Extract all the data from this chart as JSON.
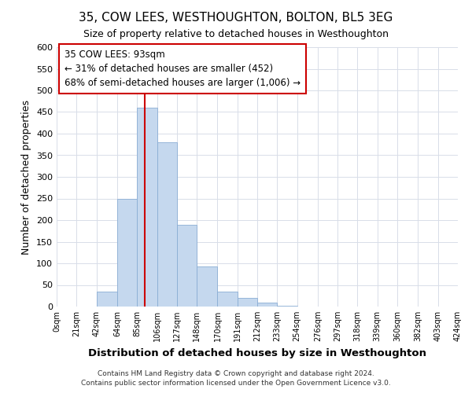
{
  "title": "35, COW LEES, WESTHOUGHTON, BOLTON, BL5 3EG",
  "subtitle": "Size of property relative to detached houses in Westhoughton",
  "xlabel": "Distribution of detached houses by size in Westhoughton",
  "ylabel": "Number of detached properties",
  "bar_color": "#c5d8ee",
  "bar_edge_color": "#8aadd4",
  "grid_color": "#d8dde8",
  "bin_edges": [
    0,
    21,
    42,
    64,
    85,
    106,
    127,
    148,
    170,
    191,
    212,
    233,
    254,
    276,
    297,
    318,
    339,
    360,
    382,
    403,
    424
  ],
  "bin_labels": [
    "0sqm",
    "21sqm",
    "42sqm",
    "64sqm",
    "85sqm",
    "106sqm",
    "127sqm",
    "148sqm",
    "170sqm",
    "191sqm",
    "212sqm",
    "233sqm",
    "254sqm",
    "276sqm",
    "297sqm",
    "318sqm",
    "339sqm",
    "360sqm",
    "382sqm",
    "403sqm",
    "424sqm"
  ],
  "counts": [
    0,
    0,
    35,
    250,
    460,
    380,
    190,
    92,
    35,
    20,
    10,
    2,
    0,
    0,
    0,
    0,
    0,
    0,
    0,
    0
  ],
  "ylim": [
    0,
    600
  ],
  "yticks": [
    0,
    50,
    100,
    150,
    200,
    250,
    300,
    350,
    400,
    450,
    500,
    550,
    600
  ],
  "vertical_line_x": 93,
  "annotation_title": "35 COW LEES: 93sqm",
  "annotation_line1": "← 31% of detached houses are smaller (452)",
  "annotation_line2": "68% of semi-detached houses are larger (1,006) →",
  "annotation_box_color": "#ffffff",
  "annotation_box_edge": "#cc0000",
  "vline_color": "#cc0000",
  "footer1": "Contains HM Land Registry data © Crown copyright and database right 2024.",
  "footer2": "Contains public sector information licensed under the Open Government Licence v3.0.",
  "fig_bg": "#ffffff",
  "plot_bg": "#ffffff"
}
